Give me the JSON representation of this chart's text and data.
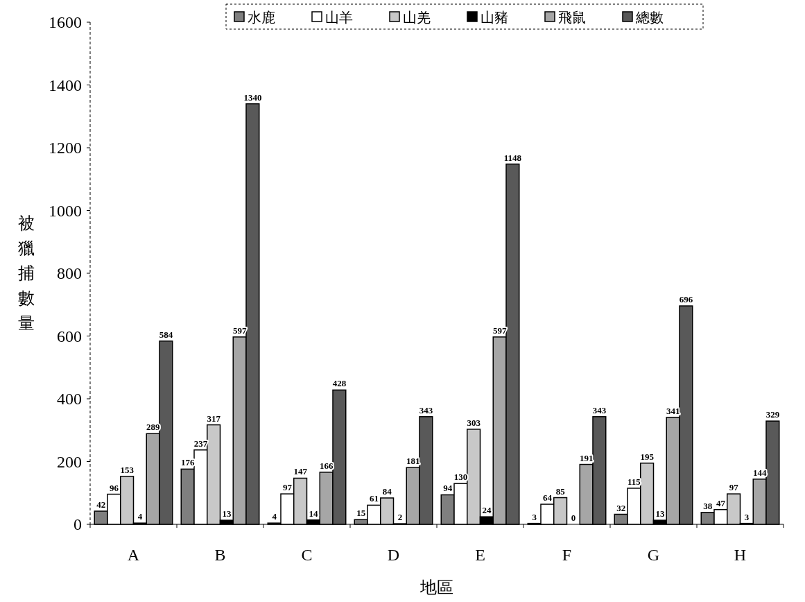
{
  "chart_data": {
    "type": "bar",
    "categories": [
      "A",
      "B",
      "C",
      "D",
      "E",
      "F",
      "G",
      "H"
    ],
    "series": [
      {
        "name": "水鹿",
        "color": "#7f7f7f",
        "values": [
          42,
          176,
          4,
          15,
          94,
          3,
          32,
          38
        ]
      },
      {
        "name": "山羊",
        "color": "#ffffff",
        "values": [
          96,
          237,
          97,
          61,
          130,
          64,
          115,
          47
        ]
      },
      {
        "name": "山羌",
        "color": "#c8c8c8",
        "values": [
          153,
          317,
          147,
          84,
          303,
          85,
          195,
          97
        ]
      },
      {
        "name": "山豬",
        "color": "#000000",
        "values": [
          4,
          13,
          14,
          2,
          24,
          0,
          13,
          3
        ]
      },
      {
        "name": "飛鼠",
        "color": "#a6a6a6",
        "values": [
          289,
          597,
          166,
          181,
          597,
          191,
          341,
          144
        ]
      },
      {
        "name": "總數",
        "color": "#595959",
        "values": [
          584,
          1340,
          428,
          343,
          1148,
          343,
          696,
          329
        ]
      }
    ],
    "xlabel": "地區",
    "ylabel": "被獵捕數量",
    "ylim": [
      0,
      1600
    ],
    "yticks": [
      0,
      200,
      400,
      600,
      800,
      1000,
      1200,
      1400,
      1600
    ],
    "data_labels": true,
    "legend": "top",
    "grid": false
  }
}
